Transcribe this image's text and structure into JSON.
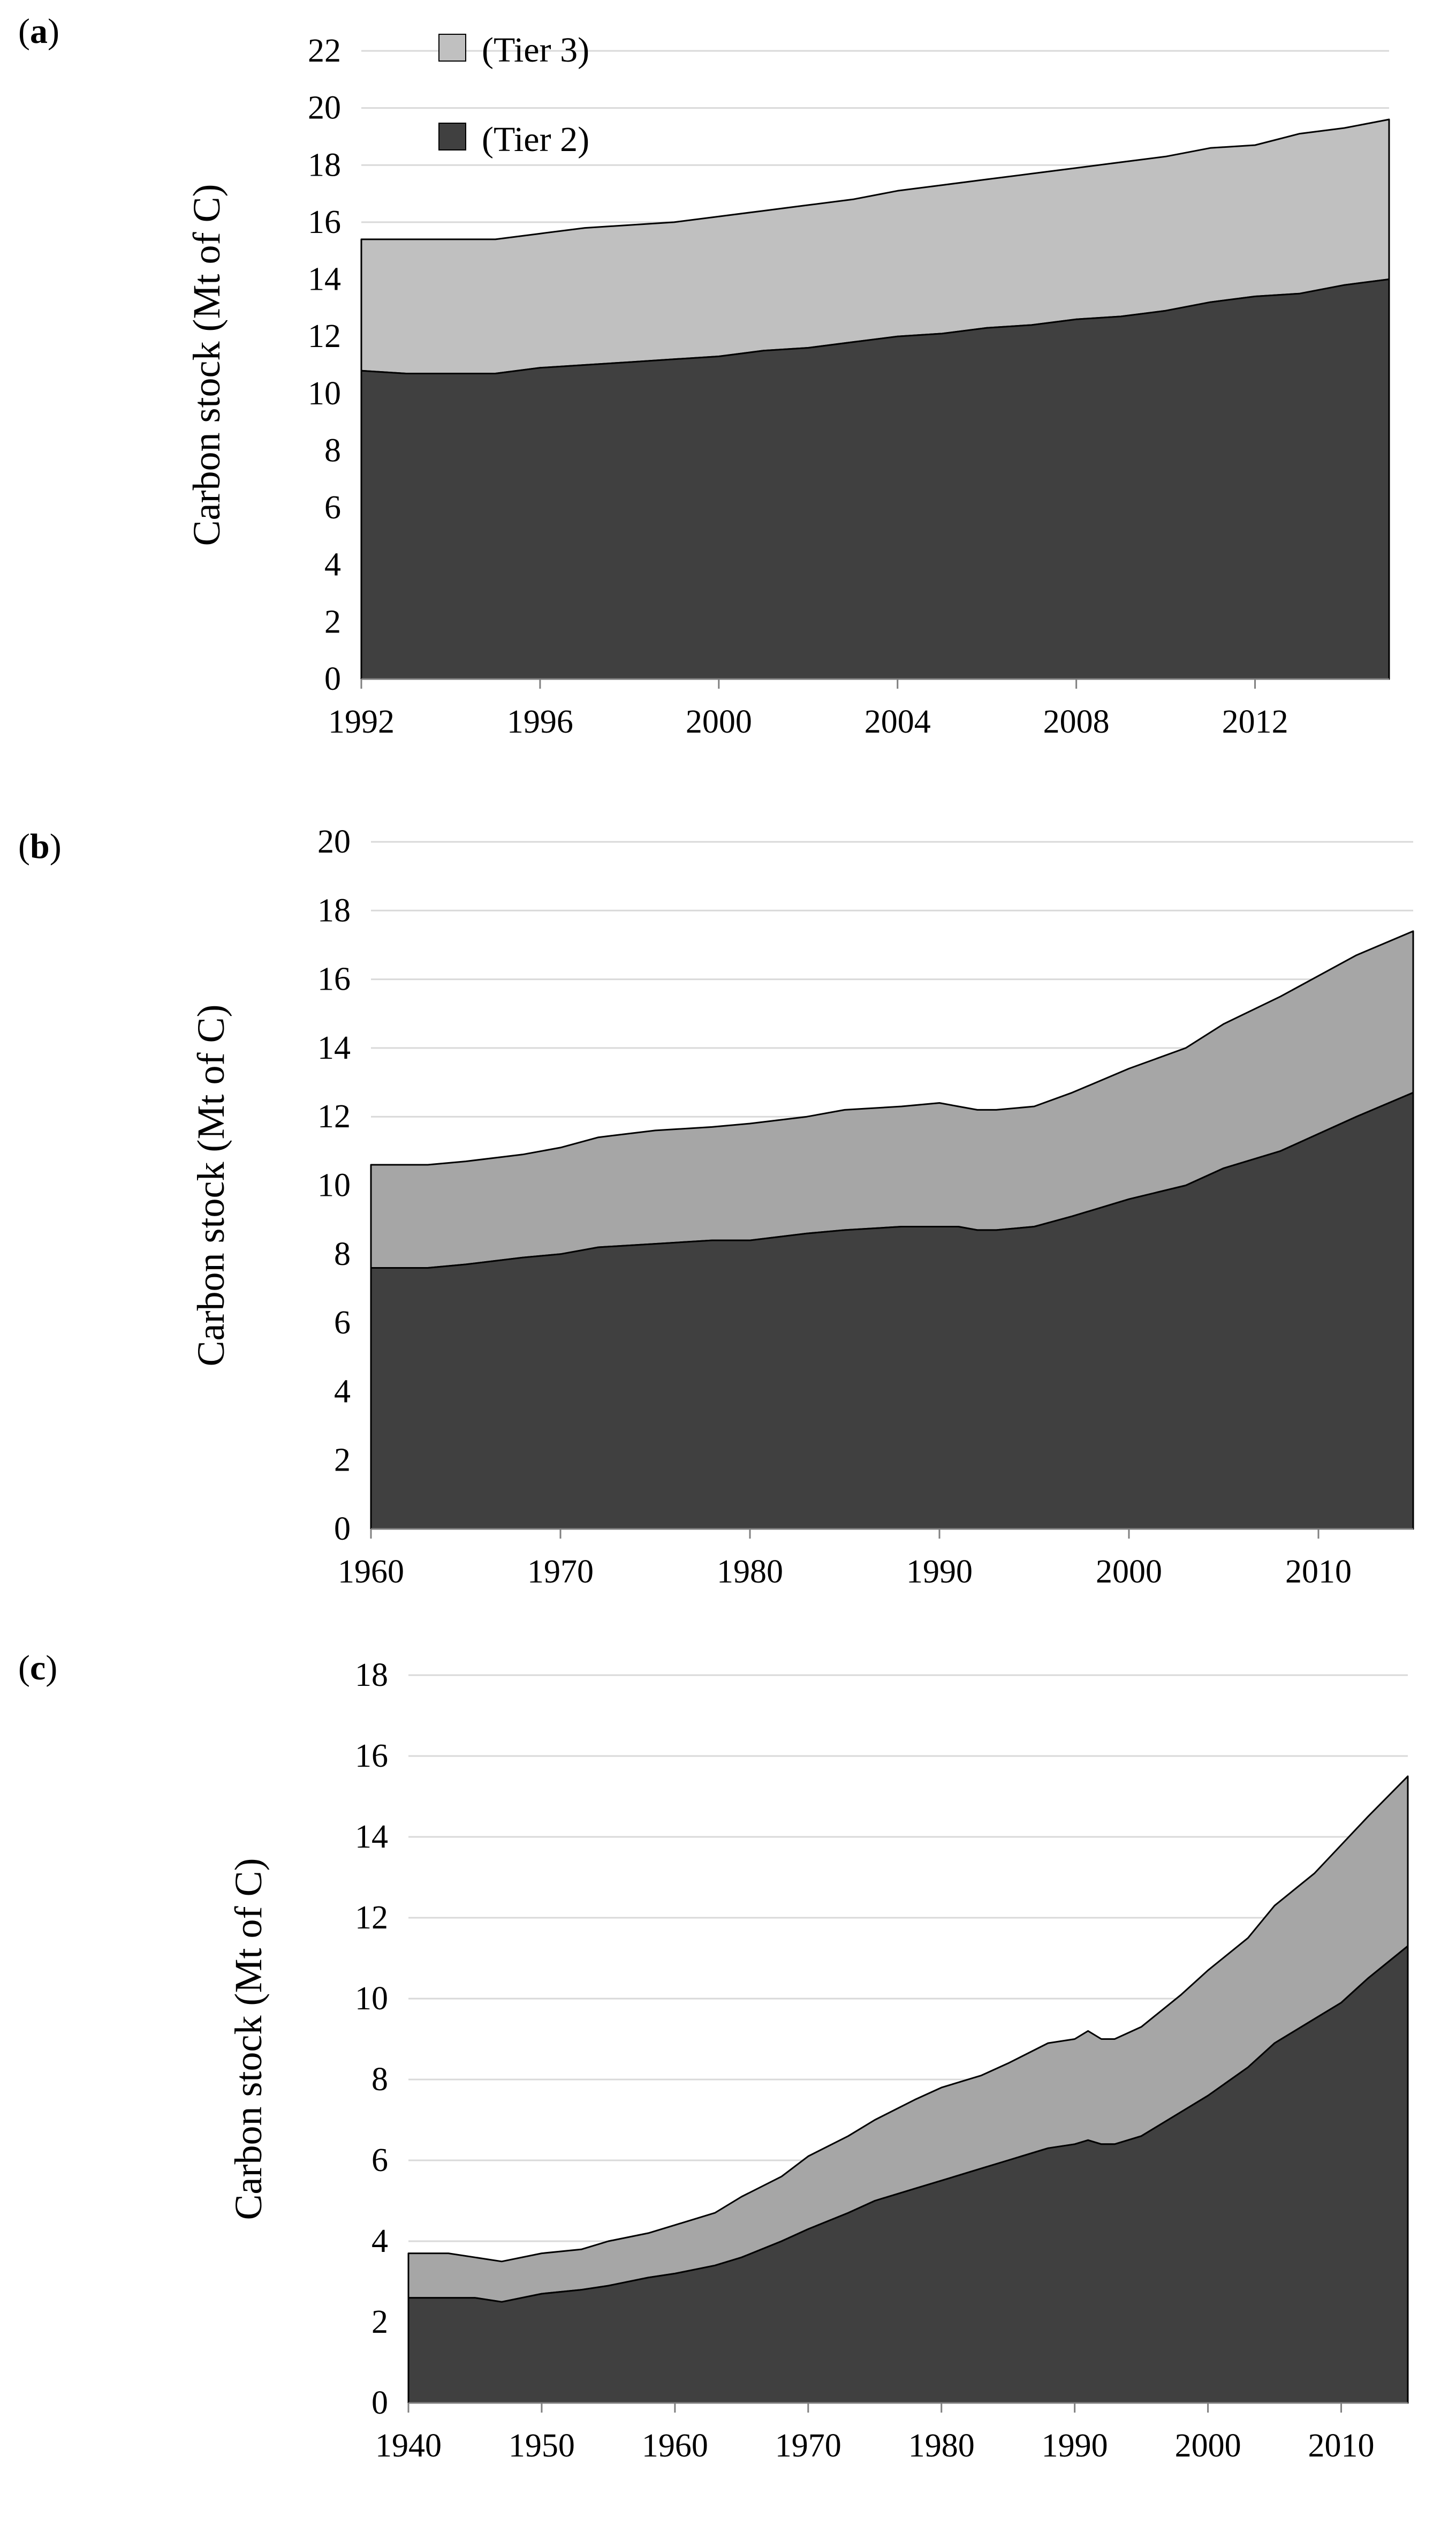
{
  "figure": {
    "legend": [
      {
        "label": "(Tier 3)",
        "color": "#c0c0c0"
      },
      {
        "label": "(Tier 2)",
        "color": "#404040"
      }
    ]
  },
  "colors": {
    "tier2_fill": "#404040",
    "tier3_fill": "#c0c0c0",
    "tier3_fill_alt": "#a6a6a6",
    "gridline": "#d9d9d9",
    "axis": "#808080",
    "outline": "#000000"
  },
  "chart_data": [
    {
      "panel": "a",
      "type": "area",
      "stacked": true,
      "ylabel": "Carbon stock (Mt of C)",
      "xlabel": "",
      "ylim": [
        0,
        22
      ],
      "yticks": [
        0,
        2,
        4,
        6,
        8,
        10,
        12,
        14,
        16,
        18,
        20,
        22
      ],
      "xlim": [
        1992,
        2015
      ],
      "xticks": [
        1992,
        1996,
        2000,
        2004,
        2008,
        2012
      ],
      "legend_position": "top-left",
      "x": [
        1992,
        1993,
        1994,
        1995,
        1996,
        1997,
        1998,
        1999,
        2000,
        2001,
        2002,
        2003,
        2004,
        2005,
        2006,
        2007,
        2008,
        2009,
        2010,
        2011,
        2012,
        2013,
        2014,
        2015
      ],
      "series": [
        {
          "name": "(Tier 2)",
          "values": [
            10.8,
            10.7,
            10.7,
            10.7,
            10.9,
            11.0,
            11.1,
            11.2,
            11.3,
            11.5,
            11.6,
            11.8,
            12.0,
            12.1,
            12.3,
            12.4,
            12.6,
            12.7,
            12.9,
            13.2,
            13.4,
            13.5,
            13.8,
            14.0
          ]
        },
        {
          "name": "(Tier 3)",
          "values": [
            4.6,
            4.7,
            4.7,
            4.7,
            4.7,
            4.8,
            4.8,
            4.8,
            4.9,
            4.9,
            5.0,
            5.0,
            5.1,
            5.2,
            5.2,
            5.3,
            5.3,
            5.4,
            5.4,
            5.4,
            5.3,
            5.6,
            5.5,
            5.6
          ]
        }
      ]
    },
    {
      "panel": "b",
      "type": "area",
      "stacked": true,
      "ylabel": "Carbon stock (Mt of C)",
      "xlabel": "",
      "ylim": [
        0,
        20
      ],
      "yticks": [
        0,
        2,
        4,
        6,
        8,
        10,
        12,
        14,
        16,
        18,
        20
      ],
      "xlim": [
        1960,
        2015
      ],
      "xticks": [
        1960,
        1970,
        1980,
        1990,
        2000,
        2010
      ],
      "x": [
        1960,
        1963,
        1965,
        1968,
        1970,
        1972,
        1975,
        1978,
        1980,
        1983,
        1985,
        1988,
        1990,
        1991,
        1992,
        1993,
        1995,
        1997,
        2000,
        2003,
        2005,
        2008,
        2010,
        2012,
        2015
      ],
      "series": [
        {
          "name": "(Tier 2)",
          "values": [
            7.6,
            7.6,
            7.7,
            7.9,
            8.0,
            8.2,
            8.3,
            8.4,
            8.4,
            8.6,
            8.7,
            8.8,
            8.8,
            8.8,
            8.7,
            8.7,
            8.8,
            9.1,
            9.6,
            10.0,
            10.5,
            11.0,
            11.5,
            12.0,
            12.7
          ]
        },
        {
          "name": "(Tier 3)",
          "values": [
            3.0,
            3.0,
            3.0,
            3.0,
            3.1,
            3.2,
            3.3,
            3.3,
            3.4,
            3.4,
            3.5,
            3.5,
            3.6,
            3.5,
            3.5,
            3.5,
            3.5,
            3.6,
            3.8,
            4.0,
            4.2,
            4.5,
            4.6,
            4.7,
            4.7
          ]
        }
      ]
    },
    {
      "panel": "c",
      "type": "area",
      "stacked": true,
      "ylabel": "Carbon stock (Mt of C)",
      "xlabel": "",
      "ylim": [
        0,
        18
      ],
      "yticks": [
        0,
        2,
        4,
        6,
        8,
        10,
        12,
        14,
        16,
        18
      ],
      "xlim": [
        1940,
        2015
      ],
      "xticks": [
        1940,
        1950,
        1960,
        1970,
        1980,
        1990,
        2000,
        2010
      ],
      "x": [
        1940,
        1943,
        1945,
        1947,
        1950,
        1953,
        1955,
        1958,
        1960,
        1963,
        1965,
        1968,
        1970,
        1973,
        1975,
        1978,
        1980,
        1983,
        1985,
        1988,
        1990,
        1991,
        1992,
        1993,
        1995,
        1998,
        2000,
        2003,
        2005,
        2008,
        2010,
        2012,
        2015
      ],
      "series": [
        {
          "name": "(Tier 2)",
          "values": [
            2.6,
            2.6,
            2.6,
            2.5,
            2.7,
            2.8,
            2.9,
            3.1,
            3.2,
            3.4,
            3.6,
            4.0,
            4.3,
            4.7,
            5.0,
            5.3,
            5.5,
            5.8,
            6.0,
            6.3,
            6.4,
            6.5,
            6.4,
            6.4,
            6.6,
            7.2,
            7.6,
            8.3,
            8.9,
            9.5,
            9.9,
            10.5,
            11.3
          ]
        },
        {
          "name": "(Tier 3)",
          "values": [
            1.1,
            1.1,
            1.0,
            1.0,
            1.0,
            1.0,
            1.1,
            1.1,
            1.2,
            1.3,
            1.5,
            1.6,
            1.8,
            1.9,
            2.0,
            2.2,
            2.3,
            2.3,
            2.4,
            2.6,
            2.6,
            2.7,
            2.6,
            2.6,
            2.7,
            2.9,
            3.1,
            3.2,
            3.4,
            3.6,
            3.9,
            4.0,
            4.2
          ]
        }
      ]
    }
  ]
}
